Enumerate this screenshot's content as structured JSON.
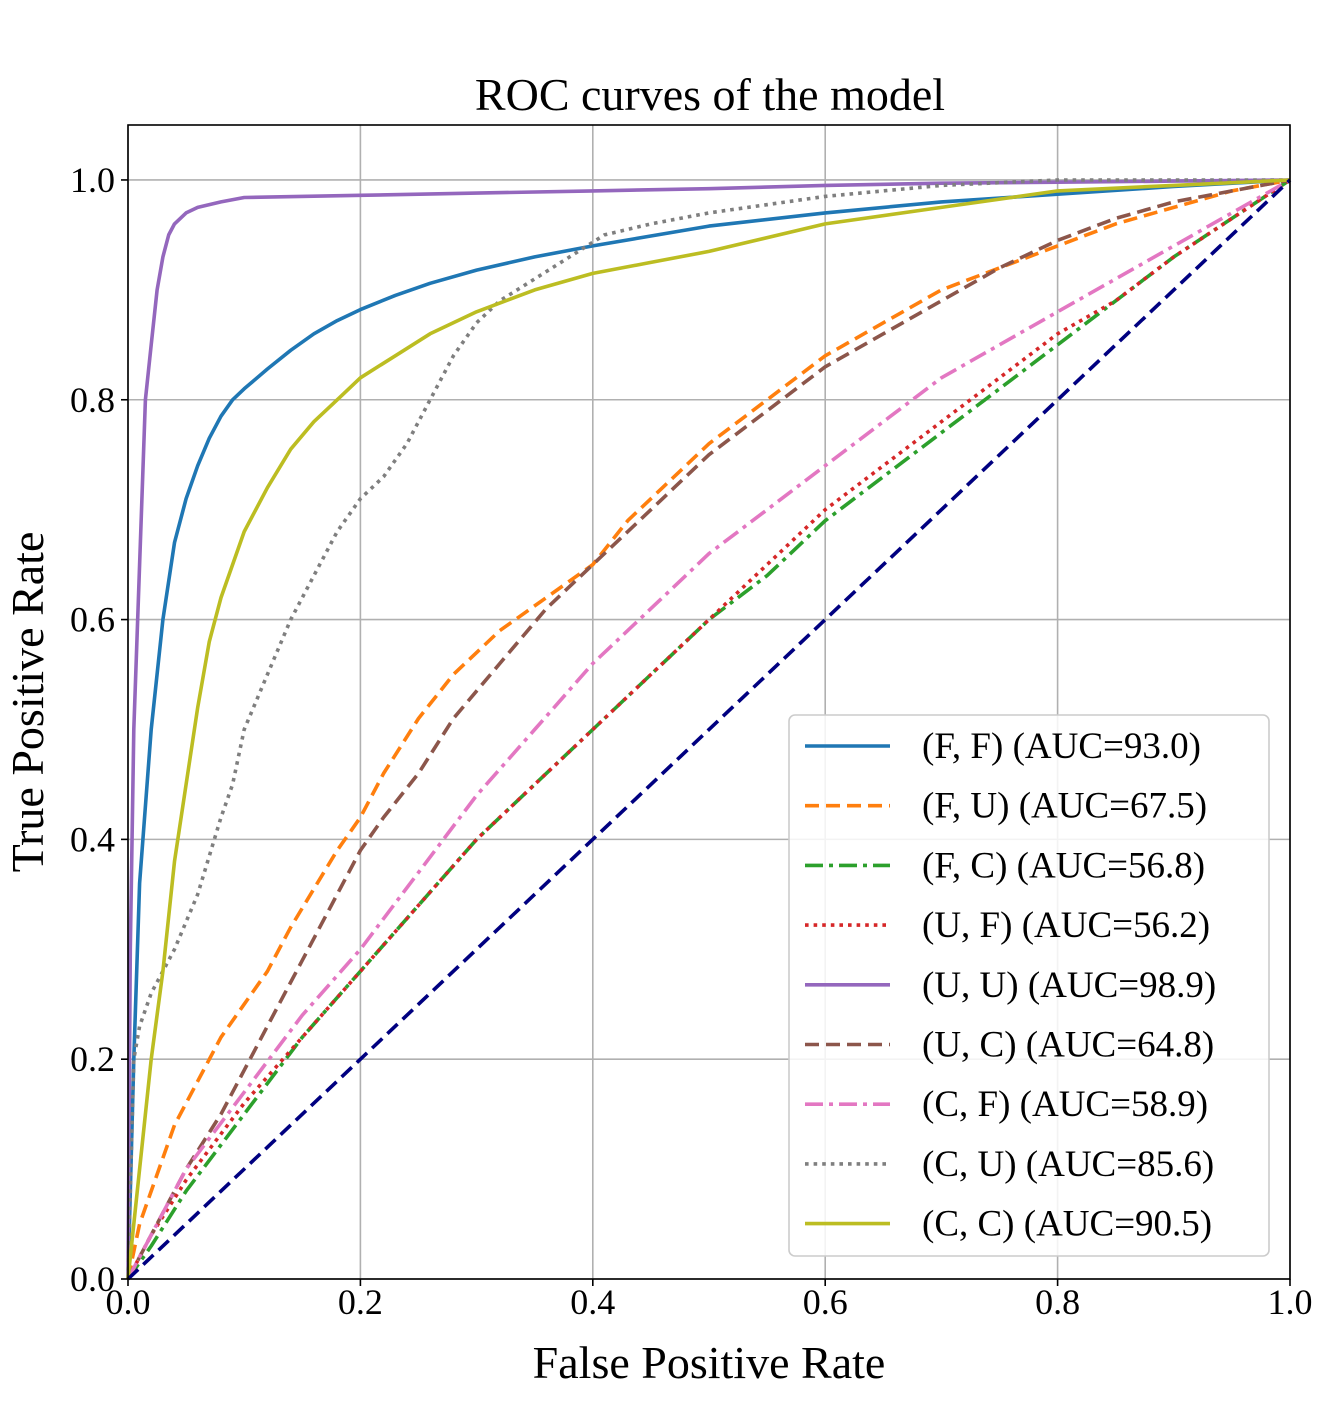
{
  "chart_data": {
    "type": "line",
    "title": "ROC curves of the model",
    "xlabel": "False Positive Rate",
    "ylabel": "True Positive Rate",
    "xlim": [
      0.0,
      1.0
    ],
    "ylim": [
      0.0,
      1.05
    ],
    "xticks": [
      "0.0",
      "0.2",
      "0.4",
      "0.6",
      "0.8",
      "1.0"
    ],
    "yticks": [
      "0.0",
      "0.2",
      "0.4",
      "0.6",
      "0.8",
      "1.0"
    ],
    "grid": true,
    "legend_position": "lower-right",
    "series": [
      {
        "name": "(F, F) (AUC=93.0)",
        "color": "#1f77b4",
        "style": "solid",
        "points": [
          [
            0,
            0
          ],
          [
            0.005,
            0.2
          ],
          [
            0.01,
            0.36
          ],
          [
            0.02,
            0.5
          ],
          [
            0.03,
            0.6
          ],
          [
            0.04,
            0.67
          ],
          [
            0.05,
            0.71
          ],
          [
            0.06,
            0.74
          ],
          [
            0.07,
            0.765
          ],
          [
            0.08,
            0.785
          ],
          [
            0.09,
            0.8
          ],
          [
            0.1,
            0.81
          ],
          [
            0.12,
            0.828
          ],
          [
            0.14,
            0.845
          ],
          [
            0.16,
            0.86
          ],
          [
            0.18,
            0.872
          ],
          [
            0.2,
            0.882
          ],
          [
            0.23,
            0.895
          ],
          [
            0.26,
            0.906
          ],
          [
            0.3,
            0.918
          ],
          [
            0.35,
            0.93
          ],
          [
            0.4,
            0.94
          ],
          [
            0.5,
            0.958
          ],
          [
            0.6,
            0.97
          ],
          [
            0.7,
            0.98
          ],
          [
            0.8,
            0.987
          ],
          [
            0.9,
            0.994
          ],
          [
            1,
            1
          ]
        ]
      },
      {
        "name": "(F, U) (AUC=67.5)",
        "color": "#ff7f0e",
        "style": "dashed",
        "points": [
          [
            0,
            0
          ],
          [
            0.01,
            0.05
          ],
          [
            0.02,
            0.08
          ],
          [
            0.04,
            0.14
          ],
          [
            0.06,
            0.18
          ],
          [
            0.08,
            0.22
          ],
          [
            0.1,
            0.25
          ],
          [
            0.12,
            0.28
          ],
          [
            0.14,
            0.32
          ],
          [
            0.16,
            0.355
          ],
          [
            0.18,
            0.39
          ],
          [
            0.2,
            0.42
          ],
          [
            0.22,
            0.46
          ],
          [
            0.25,
            0.51
          ],
          [
            0.28,
            0.55
          ],
          [
            0.32,
            0.59
          ],
          [
            0.36,
            0.62
          ],
          [
            0.4,
            0.65
          ],
          [
            0.43,
            0.69
          ],
          [
            0.46,
            0.72
          ],
          [
            0.5,
            0.76
          ],
          [
            0.55,
            0.8
          ],
          [
            0.6,
            0.84
          ],
          [
            0.65,
            0.87
          ],
          [
            0.7,
            0.9
          ],
          [
            0.75,
            0.92
          ],
          [
            0.8,
            0.94
          ],
          [
            0.85,
            0.96
          ],
          [
            0.9,
            0.975
          ],
          [
            0.95,
            0.99
          ],
          [
            1,
            1
          ]
        ]
      },
      {
        "name": "(F, C) (AUC=56.8)",
        "color": "#2ca02c",
        "style": "dashdot",
        "points": [
          [
            0,
            0
          ],
          [
            0.02,
            0.03
          ],
          [
            0.05,
            0.08
          ],
          [
            0.1,
            0.15
          ],
          [
            0.15,
            0.22
          ],
          [
            0.2,
            0.28
          ],
          [
            0.25,
            0.34
          ],
          [
            0.3,
            0.4
          ],
          [
            0.35,
            0.45
          ],
          [
            0.4,
            0.5
          ],
          [
            0.45,
            0.55
          ],
          [
            0.5,
            0.6
          ],
          [
            0.55,
            0.64
          ],
          [
            0.6,
            0.69
          ],
          [
            0.65,
            0.73
          ],
          [
            0.7,
            0.77
          ],
          [
            0.75,
            0.81
          ],
          [
            0.8,
            0.85
          ],
          [
            0.85,
            0.89
          ],
          [
            0.9,
            0.93
          ],
          [
            0.95,
            0.965
          ],
          [
            1,
            1
          ]
        ]
      },
      {
        "name": "(U, F) (AUC=56.2)",
        "color": "#d62728",
        "style": "dotted",
        "points": [
          [
            0,
            0
          ],
          [
            0.02,
            0.04
          ],
          [
            0.05,
            0.09
          ],
          [
            0.1,
            0.16
          ],
          [
            0.15,
            0.22
          ],
          [
            0.2,
            0.28
          ],
          [
            0.25,
            0.34
          ],
          [
            0.3,
            0.4
          ],
          [
            0.35,
            0.45
          ],
          [
            0.4,
            0.5
          ],
          [
            0.45,
            0.55
          ],
          [
            0.5,
            0.6
          ],
          [
            0.55,
            0.65
          ],
          [
            0.6,
            0.7
          ],
          [
            0.65,
            0.74
          ],
          [
            0.7,
            0.78
          ],
          [
            0.75,
            0.82
          ],
          [
            0.8,
            0.86
          ],
          [
            0.85,
            0.89
          ],
          [
            0.9,
            0.93
          ],
          [
            0.95,
            0.965
          ],
          [
            1,
            1
          ]
        ]
      },
      {
        "name": "(U, U) (AUC=98.9)",
        "color": "#9467bd",
        "style": "solid",
        "points": [
          [
            0,
            0
          ],
          [
            0.002,
            0.3
          ],
          [
            0.005,
            0.5
          ],
          [
            0.01,
            0.65
          ],
          [
            0.015,
            0.8
          ],
          [
            0.02,
            0.85
          ],
          [
            0.025,
            0.9
          ],
          [
            0.03,
            0.93
          ],
          [
            0.035,
            0.95
          ],
          [
            0.04,
            0.96
          ],
          [
            0.05,
            0.97
          ],
          [
            0.06,
            0.975
          ],
          [
            0.08,
            0.98
          ],
          [
            0.1,
            0.984
          ],
          [
            0.2,
            0.986
          ],
          [
            0.3,
            0.988
          ],
          [
            0.4,
            0.99
          ],
          [
            0.5,
            0.992
          ],
          [
            0.6,
            0.995
          ],
          [
            0.7,
            0.997
          ],
          [
            0.8,
            0.998
          ],
          [
            0.9,
            0.999
          ],
          [
            1,
            1
          ]
        ]
      },
      {
        "name": "(U, C) (AUC=64.8)",
        "color": "#8c564b",
        "style": "dashed",
        "points": [
          [
            0,
            0
          ],
          [
            0.02,
            0.04
          ],
          [
            0.05,
            0.1
          ],
          [
            0.08,
            0.15
          ],
          [
            0.1,
            0.19
          ],
          [
            0.12,
            0.23
          ],
          [
            0.15,
            0.29
          ],
          [
            0.18,
            0.35
          ],
          [
            0.2,
            0.39
          ],
          [
            0.22,
            0.42
          ],
          [
            0.25,
            0.46
          ],
          [
            0.28,
            0.51
          ],
          [
            0.32,
            0.56
          ],
          [
            0.36,
            0.61
          ],
          [
            0.4,
            0.65
          ],
          [
            0.45,
            0.7
          ],
          [
            0.5,
            0.75
          ],
          [
            0.55,
            0.79
          ],
          [
            0.6,
            0.83
          ],
          [
            0.65,
            0.86
          ],
          [
            0.7,
            0.89
          ],
          [
            0.75,
            0.92
          ],
          [
            0.8,
            0.945
          ],
          [
            0.85,
            0.965
          ],
          [
            0.9,
            0.98
          ],
          [
            0.95,
            0.99
          ],
          [
            1,
            1
          ]
        ]
      },
      {
        "name": "(C, F) (AUC=58.9)",
        "color": "#e377c2",
        "style": "dashdot",
        "points": [
          [
            0,
            0
          ],
          [
            0.02,
            0.04
          ],
          [
            0.05,
            0.1
          ],
          [
            0.1,
            0.17
          ],
          [
            0.15,
            0.24
          ],
          [
            0.2,
            0.3
          ],
          [
            0.25,
            0.37
          ],
          [
            0.3,
            0.44
          ],
          [
            0.35,
            0.5
          ],
          [
            0.4,
            0.56
          ],
          [
            0.45,
            0.61
          ],
          [
            0.5,
            0.66
          ],
          [
            0.55,
            0.7
          ],
          [
            0.6,
            0.74
          ],
          [
            0.65,
            0.78
          ],
          [
            0.7,
            0.82
          ],
          [
            0.75,
            0.85
          ],
          [
            0.8,
            0.88
          ],
          [
            0.85,
            0.91
          ],
          [
            0.9,
            0.94
          ],
          [
            0.95,
            0.97
          ],
          [
            1,
            1
          ]
        ]
      },
      {
        "name": "(C, U) (AUC=85.6)",
        "color": "#7f7f7f",
        "style": "dotted",
        "points": [
          [
            0,
            0
          ],
          [
            0.005,
            0.2
          ],
          [
            0.01,
            0.23
          ],
          [
            0.02,
            0.26
          ],
          [
            0.04,
            0.3
          ],
          [
            0.06,
            0.35
          ],
          [
            0.08,
            0.42
          ],
          [
            0.09,
            0.45
          ],
          [
            0.1,
            0.5
          ],
          [
            0.12,
            0.55
          ],
          [
            0.14,
            0.6
          ],
          [
            0.16,
            0.64
          ],
          [
            0.18,
            0.68
          ],
          [
            0.2,
            0.71
          ],
          [
            0.22,
            0.73
          ],
          [
            0.24,
            0.76
          ],
          [
            0.26,
            0.8
          ],
          [
            0.28,
            0.84
          ],
          [
            0.3,
            0.87
          ],
          [
            0.32,
            0.89
          ],
          [
            0.35,
            0.91
          ],
          [
            0.38,
            0.93
          ],
          [
            0.41,
            0.95
          ],
          [
            0.45,
            0.96
          ],
          [
            0.5,
            0.97
          ],
          [
            0.6,
            0.985
          ],
          [
            0.7,
            0.995
          ],
          [
            0.8,
            1.0
          ],
          [
            0.9,
            1.0
          ],
          [
            1,
            1
          ]
        ]
      },
      {
        "name": "(C, C) (AUC=90.5)",
        "color": "#bcbd22",
        "style": "solid",
        "points": [
          [
            0,
            0
          ],
          [
            0.01,
            0.1
          ],
          [
            0.02,
            0.2
          ],
          [
            0.03,
            0.28
          ],
          [
            0.04,
            0.38
          ],
          [
            0.05,
            0.45
          ],
          [
            0.06,
            0.52
          ],
          [
            0.07,
            0.58
          ],
          [
            0.08,
            0.62
          ],
          [
            0.1,
            0.68
          ],
          [
            0.12,
            0.72
          ],
          [
            0.14,
            0.755
          ],
          [
            0.16,
            0.78
          ],
          [
            0.18,
            0.8
          ],
          [
            0.2,
            0.82
          ],
          [
            0.23,
            0.84
          ],
          [
            0.26,
            0.86
          ],
          [
            0.3,
            0.88
          ],
          [
            0.35,
            0.9
          ],
          [
            0.4,
            0.915
          ],
          [
            0.45,
            0.925
          ],
          [
            0.5,
            0.935
          ],
          [
            0.6,
            0.96
          ],
          [
            0.7,
            0.975
          ],
          [
            0.8,
            0.99
          ],
          [
            0.9,
            0.995
          ],
          [
            1,
            1
          ]
        ]
      },
      {
        "name": "",
        "color": "#000080",
        "style": "dashed",
        "reference": true,
        "points": [
          [
            0,
            0
          ],
          [
            1,
            1
          ]
        ]
      }
    ]
  }
}
